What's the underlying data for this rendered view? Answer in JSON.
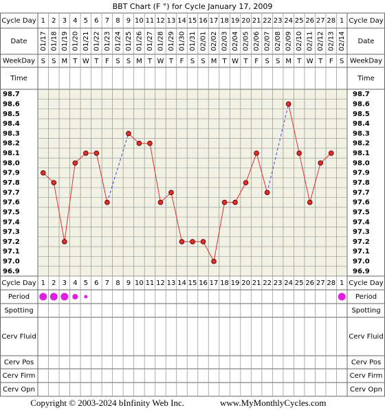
{
  "chart_data": {
    "type": "line",
    "title": "BBT Chart (F °) for Cycle January 17, 2009",
    "row_labels": {
      "cycle_day": "Cycle Day",
      "date": "Date",
      "weekday": "WeekDay",
      "time": "Time",
      "period": "Period",
      "spotting": "Spotting",
      "cerv_fluid": "Cerv Fluid",
      "cerv_pos": "Cerv Pos",
      "cerv_firm": "Cerv Firm",
      "cerv_opn": "Cerv Opn"
    },
    "cycle_days": [
      1,
      2,
      3,
      4,
      5,
      6,
      7,
      8,
      9,
      10,
      11,
      12,
      13,
      14,
      15,
      16,
      17,
      18,
      19,
      20,
      21,
      22,
      23,
      24,
      25,
      26,
      27,
      28,
      1
    ],
    "categories": [
      "01/17",
      "01/18",
      "01/19",
      "01/20",
      "01/21",
      "01/22",
      "01/23",
      "01/24",
      "01/25",
      "01/26",
      "01/27",
      "01/28",
      "01/29",
      "01/30",
      "01/31",
      "02/01",
      "02/02",
      "02/03",
      "02/04",
      "02/05",
      "02/06",
      "02/07",
      "02/08",
      "02/09",
      "02/10",
      "02/11",
      "02/12",
      "02/13",
      "02/14"
    ],
    "weekdays": [
      "S",
      "S",
      "M",
      "T",
      "W",
      "T",
      "F",
      "S",
      "S",
      "M",
      "T",
      "W",
      "T",
      "F",
      "S",
      "S",
      "M",
      "T",
      "W",
      "T",
      "F",
      "S",
      "S",
      "M",
      "T",
      "W",
      "T",
      "F",
      "S"
    ],
    "values": [
      97.9,
      97.8,
      97.2,
      98.0,
      98.1,
      98.1,
      97.6,
      null,
      98.3,
      98.2,
      98.2,
      97.6,
      97.7,
      97.2,
      97.2,
      97.2,
      97.0,
      97.6,
      97.6,
      97.8,
      98.1,
      97.7,
      null,
      98.6,
      98.1,
      97.6,
      98.0,
      98.1,
      null
    ],
    "color": "#e03030",
    "period": [
      3,
      3,
      3,
      2,
      1,
      null,
      null,
      null,
      null,
      null,
      null,
      null,
      null,
      null,
      null,
      null,
      null,
      null,
      null,
      null,
      null,
      null,
      null,
      null,
      null,
      null,
      null,
      null,
      3
    ],
    "period_color": "#e020e0",
    "ylim": [
      96.85,
      98.75
    ],
    "yticks": [
      98.7,
      98.6,
      98.5,
      98.4,
      98.3,
      98.2,
      98.1,
      {
        "value": 98.0,
        "label": "98.0"
      },
      97.9,
      97.8,
      97.7,
      97.6,
      97.5,
      97.4,
      97.3,
      97.2,
      97.1,
      {
        "value": 97.0,
        "label": "97.0"
      },
      96.9
    ],
    "grid": true
  },
  "footer": {
    "copyright": "Copyright © 2003-2024 bInfinity Web Inc.",
    "site": "www.MyMonthlyCycles.com"
  }
}
